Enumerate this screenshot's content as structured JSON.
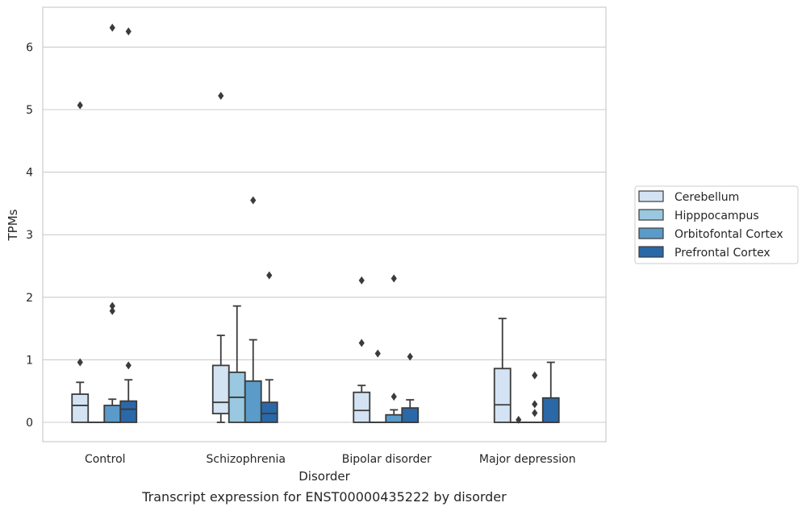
{
  "chart_data": {
    "type": "boxplot",
    "caption": "Transcript expression for ENST00000435222 by disorder",
    "xlabel": "Disorder",
    "ylabel": "TPMs",
    "ylim": [
      -0.3,
      6.65
    ],
    "yticks": [
      0,
      1,
      2,
      3,
      4,
      5,
      6
    ],
    "grid": "horizontal",
    "legend_position": "right",
    "categories": [
      "Control",
      "Schizophrenia",
      "Bipolar disorder",
      "Major depression"
    ],
    "series": [
      {
        "name": "Cerebellum",
        "color": "#d3e3f3",
        "boxes": [
          {
            "whislo": 0,
            "q1": 0,
            "med": 0.27,
            "q3": 0.45,
            "whishi": 0.64,
            "fliers": [
              5.07,
              0.96
            ]
          },
          {
            "whislo": 0,
            "q1": 0.14,
            "med": 0.32,
            "q3": 0.91,
            "whishi": 1.39,
            "fliers": [
              5.22
            ]
          },
          {
            "whislo": 0,
            "q1": 0,
            "med": 0.19,
            "q3": 0.48,
            "whishi": 0.59,
            "fliers": [
              2.27,
              1.27
            ]
          },
          {
            "whislo": 0,
            "q1": 0,
            "med": 0.28,
            "q3": 0.86,
            "whishi": 1.66,
            "fliers": []
          }
        ]
      },
      {
        "name": "Hipppocampus",
        "color": "#9ac8e0",
        "boxes": [
          {
            "whislo": 0,
            "q1": 0,
            "med": 0,
            "q3": 0,
            "whishi": 0,
            "fliers": []
          },
          {
            "whislo": 0,
            "q1": 0,
            "med": 0.4,
            "q3": 0.8,
            "whishi": 1.86,
            "fliers": []
          },
          {
            "whislo": 0,
            "q1": 0,
            "med": 0,
            "q3": 0,
            "whishi": 0,
            "fliers": [
              1.1
            ]
          },
          {
            "whislo": 0,
            "q1": 0,
            "med": 0,
            "q3": 0,
            "whishi": 0,
            "fliers": [
              0.04
            ]
          }
        ]
      },
      {
        "name": "Orbitofontal Cortex",
        "color": "#5a9bc9",
        "boxes": [
          {
            "whislo": 0,
            "q1": 0,
            "med": 0,
            "q3": 0.27,
            "whishi": 0.37,
            "fliers": [
              6.31,
              1.86,
              1.78
            ]
          },
          {
            "whislo": 0,
            "q1": 0,
            "med": 0,
            "q3": 0.66,
            "whishi": 1.32,
            "fliers": [
              3.55
            ]
          },
          {
            "whislo": 0,
            "q1": 0,
            "med": 0,
            "q3": 0.12,
            "whishi": 0.2,
            "fliers": [
              2.3,
              0.41
            ]
          },
          {
            "whislo": 0,
            "q1": 0,
            "med": 0,
            "q3": 0,
            "whishi": 0,
            "fliers": [
              0.75,
              0.29,
              0.15
            ]
          }
        ]
      },
      {
        "name": "Prefrontal Cortex",
        "color": "#2a68a8",
        "boxes": [
          {
            "whislo": 0,
            "q1": 0,
            "med": 0.21,
            "q3": 0.34,
            "whishi": 0.68,
            "fliers": [
              6.25,
              0.91
            ]
          },
          {
            "whislo": 0,
            "q1": 0,
            "med": 0.14,
            "q3": 0.32,
            "whishi": 0.68,
            "fliers": [
              2.35
            ]
          },
          {
            "whislo": 0,
            "q1": 0,
            "med": 0,
            "q3": 0.23,
            "whishi": 0.36,
            "fliers": [
              1.05
            ]
          },
          {
            "whislo": 0,
            "q1": 0,
            "med": 0,
            "q3": 0.39,
            "whishi": 0.96,
            "fliers": []
          }
        ]
      }
    ]
  }
}
